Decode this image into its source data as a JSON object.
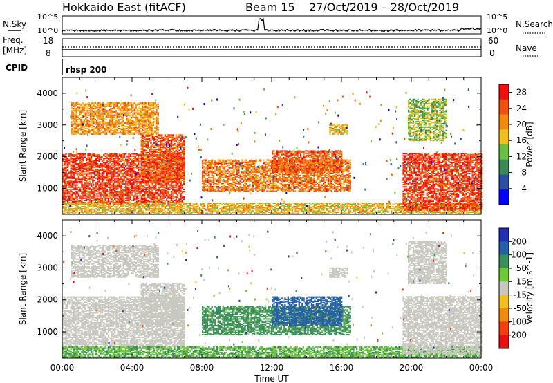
{
  "header": {
    "station": "Hokkaido East (fitACF)",
    "beam": "Beam 15",
    "dates": "27/Oct/2019 – 28/Oct/2019"
  },
  "top_panels": {
    "left_labels": [
      "N.Sky",
      "Freq.",
      "[MHz]",
      "CPID"
    ],
    "right_labels": [
      "N.Search",
      "Nave"
    ],
    "nsky_ticks": [
      "10^5",
      "10^0"
    ],
    "nsearch_ticks": [
      "10^5",
      "10^0"
    ],
    "freq_ticks": [
      "18",
      "8"
    ],
    "nave_ticks": [
      "60",
      "0"
    ],
    "cpid_text": "rbsp 200"
  },
  "x_axis": {
    "title": "Time UT",
    "ticks": [
      "00:00",
      "04:00",
      "08:00",
      "12:00",
      "16:00",
      "20:00",
      "00:00"
    ],
    "range_hours": [
      0,
      24
    ]
  },
  "colors": {
    "power_scale": [
      "#0000ff",
      "#2a4fa0",
      "#3a8a55",
      "#6ac040",
      "#f0c020",
      "#f08a10",
      "#f05010",
      "#f01010"
    ],
    "velocity_scale": [
      "#2030b0",
      "#2860a8",
      "#3a9058",
      "#70c838",
      "#c8c8c0",
      "#f0c020",
      "#f08a10",
      "#f04010",
      "#e81010"
    ]
  },
  "chart_data": [
    {
      "type": "heatmap",
      "title": "",
      "xlabel": "Time UT",
      "ylabel": "Slant Range [km]",
      "xlim": [
        0,
        24
      ],
      "ylim": [
        180,
        4500
      ],
      "y_ticks": [
        "1000",
        "2000",
        "3000",
        "4000"
      ],
      "colorbar_label": "Power [dB]",
      "colorbar_ticks": [
        "4",
        "8",
        "12",
        "16",
        "20",
        "24",
        "28"
      ],
      "colorbar_range": [
        0,
        30
      ],
      "regions": [
        {
          "t0": 0.0,
          "t1": 7.0,
          "r0": 500,
          "r1": 2100,
          "value": 26
        },
        {
          "t0": 4.5,
          "t1": 7.0,
          "r0": 1200,
          "r1": 2700,
          "value": 24
        },
        {
          "t0": 0.5,
          "t1": 5.5,
          "r0": 2700,
          "r1": 3700,
          "value": 20
        },
        {
          "t0": 0.0,
          "t1": 24.0,
          "r0": 200,
          "r1": 550,
          "value": 18
        },
        {
          "t0": 8.0,
          "t1": 16.5,
          "r0": 900,
          "r1": 1900,
          "value": 22
        },
        {
          "t0": 12.0,
          "t1": 16.0,
          "r0": 1500,
          "r1": 2200,
          "value": 24
        },
        {
          "t0": 15.3,
          "t1": 16.3,
          "r0": 2700,
          "r1": 3000,
          "value": 18
        },
        {
          "t0": 19.5,
          "t1": 24.0,
          "r0": 300,
          "r1": 2100,
          "value": 26
        },
        {
          "t0": 19.8,
          "t1": 22.0,
          "r0": 2500,
          "r1": 3800,
          "value": 14
        }
      ]
    },
    {
      "type": "heatmap",
      "title": "",
      "xlabel": "Time UT",
      "ylabel": "Slant Range [km]",
      "xlim": [
        0,
        24
      ],
      "ylim": [
        180,
        4500
      ],
      "y_ticks": [
        "1000",
        "2000",
        "3000",
        "4000"
      ],
      "colorbar_label": "Velocity [m s^-1]",
      "colorbar_ticks": [
        "200",
        "100",
        "50",
        "15",
        "-15",
        "-50",
        "-100",
        "-200"
      ],
      "colorbar_range": [
        -250,
        250
      ],
      "regions": [
        {
          "t0": 0.0,
          "t1": 7.0,
          "r0": 500,
          "r1": 2100,
          "value": 0
        },
        {
          "t0": 4.5,
          "t1": 7.0,
          "r0": 1200,
          "r1": 2500,
          "value": 0
        },
        {
          "t0": 0.5,
          "t1": 5.5,
          "r0": 2700,
          "r1": 3700,
          "value": 0
        },
        {
          "t0": 0.0,
          "t1": 24.0,
          "r0": 200,
          "r1": 550,
          "value": 30
        },
        {
          "t0": 8.0,
          "t1": 16.5,
          "r0": 900,
          "r1": 1800,
          "value": 45
        },
        {
          "t0": 12.0,
          "t1": 16.0,
          "r0": 1200,
          "r1": 2100,
          "value": 110
        },
        {
          "t0": 15.3,
          "t1": 16.3,
          "r0": 2700,
          "r1": 3000,
          "value": 0
        },
        {
          "t0": 19.5,
          "t1": 24.0,
          "r0": 300,
          "r1": 2100,
          "value": 0
        },
        {
          "t0": 19.8,
          "t1": 22.0,
          "r0": 2500,
          "r1": 3800,
          "value": 0
        }
      ]
    }
  ]
}
